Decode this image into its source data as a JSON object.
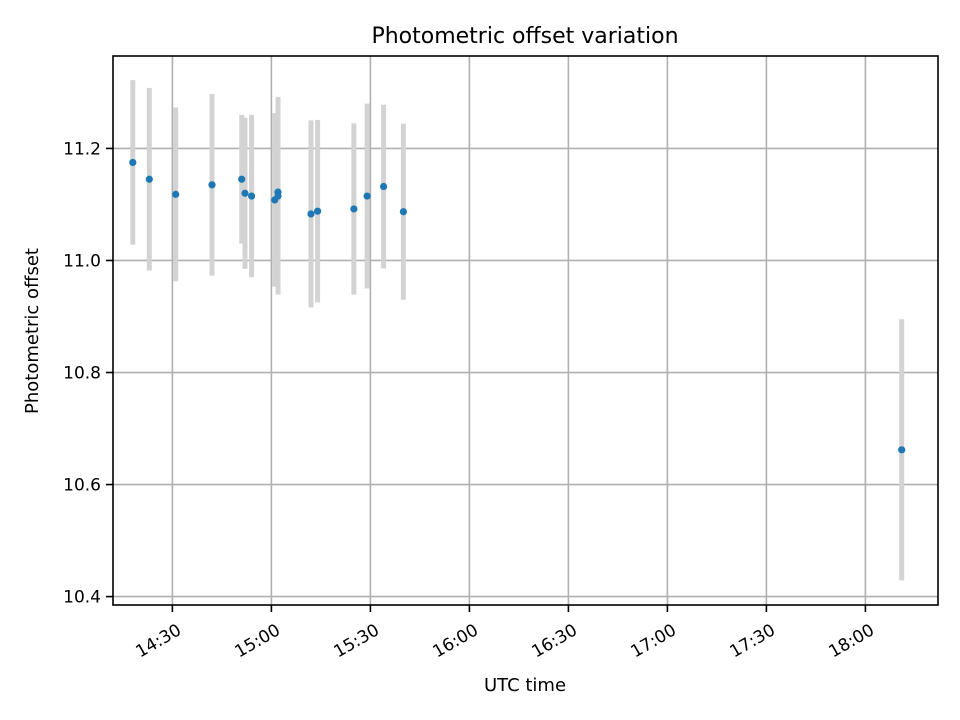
{
  "chart_data": {
    "type": "scatter",
    "title": "Photometric offset variation",
    "xlabel": "UTC time",
    "ylabel": "Photometric offset",
    "x_axis_kind": "time",
    "xlim": [
      "14:12",
      "18:22"
    ],
    "ylim": [
      10.385,
      11.365
    ],
    "x_ticks": [
      "14:30",
      "15:00",
      "15:30",
      "16:00",
      "16:30",
      "17:00",
      "17:30",
      "18:00"
    ],
    "y_ticks": [
      10.4,
      10.6,
      10.8,
      11.0,
      11.2
    ],
    "grid": true,
    "colors": {
      "point": "#1f77b4",
      "errorbar": "#d3d3d3"
    },
    "points": [
      {
        "x": "14:18",
        "y": 11.175,
        "err": 0.147
      },
      {
        "x": "14:23",
        "y": 11.145,
        "err": 0.163
      },
      {
        "x": "14:31",
        "y": 11.118,
        "err": 0.155
      },
      {
        "x": "14:42",
        "y": 11.135,
        "err": 0.162
      },
      {
        "x": "14:51",
        "y": 11.145,
        "err": 0.115
      },
      {
        "x": "14:52",
        "y": 11.12,
        "err": 0.135
      },
      {
        "x": "14:54",
        "y": 11.115,
        "err": 0.145
      },
      {
        "x": "15:01",
        "y": 11.108,
        "err": 0.155
      },
      {
        "x": "15:02",
        "y": 11.122,
        "err": 0.17
      },
      {
        "x": "15:02",
        "y": 11.115,
        "err": 0.176
      },
      {
        "x": "15:12",
        "y": 11.083,
        "err": 0.167
      },
      {
        "x": "15:14",
        "y": 11.088,
        "err": 0.163
      },
      {
        "x": "15:25",
        "y": 11.092,
        "err": 0.153
      },
      {
        "x": "15:29",
        "y": 11.115,
        "err": 0.165
      },
      {
        "x": "15:34",
        "y": 11.132,
        "err": 0.146
      },
      {
        "x": "15:40",
        "y": 11.087,
        "err": 0.157
      },
      {
        "x": "18:11",
        "y": 10.662,
        "err": 0.233
      }
    ]
  }
}
